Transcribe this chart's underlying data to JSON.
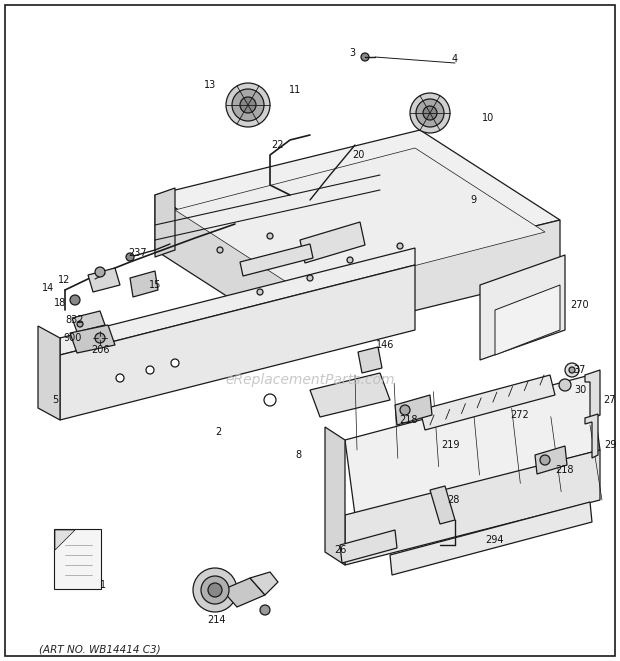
{
  "background_color": "#ffffff",
  "border_color": "#000000",
  "watermark_text": "eReplacementParts.com",
  "watermark_color": "#bbbbbb",
  "art_no": "(ART NO. WB14414 C3)",
  "fig_width": 6.2,
  "fig_height": 6.61,
  "dpi": 100,
  "line_color": "#1a1a1a",
  "fill_light": "#f5f5f5",
  "fill_mid": "#e8e8e8",
  "fill_dark": "#d0d0d0",
  "label_fontsize": 7.0,
  "label_color": "#111111"
}
